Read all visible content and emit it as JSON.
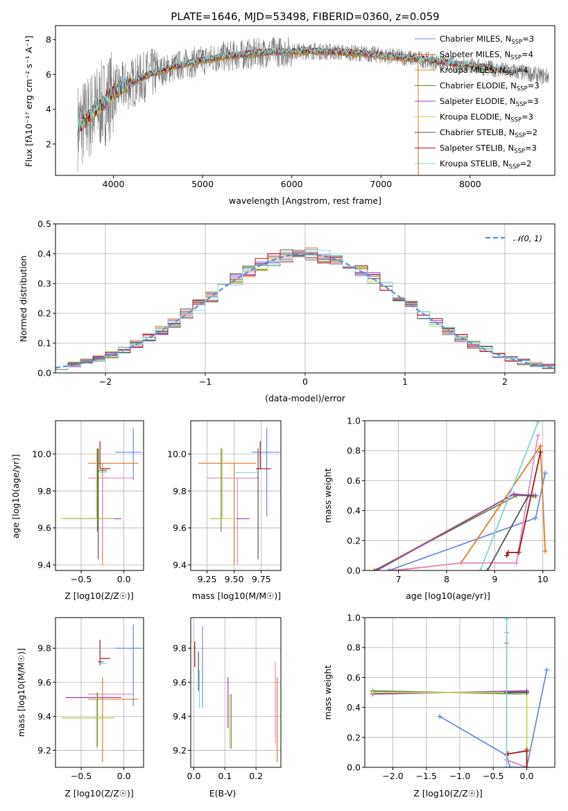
{
  "colors": {
    "Chabrier MILES": "#6b8bd6",
    "Salpeter MILES": "#e07a2a",
    "Kroupa MILES": "#d98a2b",
    "Chabrier ELODIE": "#5c8a35",
    "Salpeter ELODIE": "#9a3bbf",
    "Kroupa ELODIE": "#c8d45a",
    "Chabrier STELIB": "#555555",
    "Salpeter STELIB": "#a31414",
    "Kroupa STELIB": "#80d4d8",
    "pink": "#e58ac0",
    "normal": "#5a8fd6",
    "data_spectrum": "#7a7a7a"
  },
  "chart_data": [
    {
      "id": "spectrum",
      "type": "line",
      "title": "PLATE=1646, MJD=53498, FIBERID=0360, z=0.059",
      "xlabel": "wavelength [Angstrom, rest frame]",
      "ylabel": "Flux [fλ10⁻¹⁷ erg cm⁻² s⁻¹ A⁻¹]",
      "xlim": [
        3350,
        8950
      ],
      "ylim": [
        0.2,
        8.8
      ],
      "xticks": [
        4000,
        5000,
        6000,
        7000,
        8000
      ],
      "yticks": [
        2,
        4,
        6,
        8
      ],
      "grid": false,
      "legend": "top-right",
      "legend_entries": [
        {
          "name": "Chabrier MILES",
          "nssp": "3"
        },
        {
          "name": "Salpeter MILES",
          "nssp": "4"
        },
        {
          "name": "Kroupa MILES",
          "nssp": "4"
        },
        {
          "name": "Chabrier ELODIE",
          "nssp": "3"
        },
        {
          "name": "Salpeter ELODIE",
          "nssp": "3"
        },
        {
          "name": "Kroupa ELODIE",
          "nssp": "3"
        },
        {
          "name": "Chabrier STELIB",
          "nssp": "2"
        },
        {
          "name": "Salpeter STELIB",
          "nssp": "3"
        },
        {
          "name": "Kroupa STELIB",
          "nssp": "2"
        }
      ],
      "model_curve": {
        "x": [
          3600,
          3700,
          3800,
          3900,
          4000,
          4200,
          4400,
          4600,
          4800,
          5000,
          5200,
          5400,
          5600,
          5800,
          6000,
          6200,
          6400,
          6600,
          6800,
          7000,
          7200,
          7400,
          7600,
          7800,
          8000,
          8200,
          8400,
          8600,
          8800
        ],
        "y": [
          3.0,
          3.4,
          4.0,
          4.4,
          5.0,
          5.5,
          6.0,
          6.3,
          6.6,
          6.8,
          7.0,
          7.1,
          7.2,
          7.3,
          7.3,
          7.35,
          7.3,
          7.25,
          7.2,
          7.1,
          7.0,
          6.9,
          6.75,
          6.6,
          6.5,
          6.35,
          6.2,
          6.1,
          5.9
        ]
      }
    },
    {
      "id": "residuals",
      "type": "step",
      "xlabel": "(data-model)/error",
      "ylabel": "Normed distribution",
      "xlim": [
        -2.5,
        2.5
      ],
      "ylim": [
        0,
        0.5
      ],
      "xticks": [
        -2,
        -1,
        0,
        1,
        2
      ],
      "xtick_labels": [
        "−2",
        "−1",
        "0",
        "1",
        "2"
      ],
      "yticks": [
        0.0,
        0.1,
        0.2,
        0.3,
        0.4,
        0.5
      ],
      "ytick_labels": [
        "0.0",
        "0.1",
        "0.2",
        "0.3",
        "0.4",
        "0.5"
      ],
      "grid": true,
      "legend": "top-right",
      "normal_label": "𝒩(0, 1)"
    },
    {
      "id": "age_vs_Z",
      "type": "errorbar",
      "xlabel": "Z [log10(Z/Z☉)]",
      "ylabel": "age  [log10(age/yr)]",
      "xlim": [
        -0.8,
        0.23
      ],
      "ylim": [
        9.37,
        10.18
      ],
      "xticks": [
        -0.5,
        0.0
      ],
      "xtick_labels": [
        "−0.5",
        "0.0"
      ],
      "yticks": [
        9.4,
        9.6,
        9.8,
        10.0
      ],
      "ytick_labels": [
        "9.4",
        "9.6",
        "9.8",
        "10.0"
      ],
      "grid": true,
      "points": [
        {
          "c": "Chabrier MILES",
          "x": 0.11,
          "y": 10.01,
          "xerr": [
            0.21,
            0.1
          ],
          "yerr": [
            0.15,
            0.13
          ]
        },
        {
          "c": "Salpeter MILES",
          "x": -0.25,
          "y": 9.95,
          "xerr": [
            0.17,
            0.42
          ],
          "yerr": [
            0.55,
            0.0
          ]
        },
        {
          "c": "pink",
          "x": -0.25,
          "y": 9.87,
          "xerr": [
            0.17,
            0.37
          ],
          "yerr": [
            0.42,
            0.0
          ]
        },
        {
          "c": "Chabrier ELODIE",
          "x": -0.31,
          "y": 9.65,
          "xerr": [
            0.4,
            0.2
          ],
          "yerr": [
            0.07,
            0.38
          ]
        },
        {
          "c": "Salpeter ELODIE",
          "x": -0.3,
          "y": 9.65,
          "xerr": [
            0.38,
            0.27
          ],
          "yerr": [
            0.0,
            0.0
          ]
        },
        {
          "c": "Kroupa ELODIE",
          "x": -0.32,
          "y": 9.65,
          "xerr": [
            0.42,
            0.21
          ],
          "yerr": [
            0.0,
            0.38
          ]
        },
        {
          "c": "Chabrier STELIB",
          "x": -0.3,
          "y": 9.91,
          "xerr": [
            0.0,
            0.1
          ],
          "yerr": [
            0.48,
            0.12
          ]
        },
        {
          "c": "Salpeter STELIB",
          "x": -0.28,
          "y": 9.92,
          "xerr": [
            0.0,
            0.12
          ],
          "yerr": [
            0.0,
            0.15
          ]
        },
        {
          "c": "Kroupa STELIB",
          "x": -0.28,
          "y": 9.9,
          "xerr": [
            0.0,
            0.08
          ],
          "yerr": [
            0.0,
            0.0
          ]
        }
      ]
    },
    {
      "id": "age_vs_mass",
      "type": "errorbar",
      "xlabel": "mass [log10(M/M☉)]",
      "xlim": [
        9.1,
        9.93
      ],
      "ylim": [
        9.37,
        10.18
      ],
      "xticks": [
        9.25,
        9.5,
        9.75
      ],
      "xtick_labels": [
        "9.25",
        "9.50",
        "9.75"
      ],
      "yticks": [
        9.4,
        9.6,
        9.8,
        10.0
      ],
      "ytick_labels": [
        "9.4",
        "9.6",
        "9.8",
        "10.0"
      ],
      "grid": true,
      "points": [
        {
          "c": "Chabrier MILES",
          "x": 9.8,
          "y": 10.01,
          "xerr": [
            0.14,
            0.12
          ],
          "yerr": [
            0.35,
            0.13
          ]
        },
        {
          "c": "Salpeter MILES",
          "x": 9.5,
          "y": 9.95,
          "xerr": [
            0.33,
            0.2
          ],
          "yerr": [
            0.55,
            0.0
          ]
        },
        {
          "c": "pink",
          "x": 9.53,
          "y": 9.87,
          "xerr": [
            0.28,
            0.2
          ],
          "yerr": [
            0.47,
            0.0
          ]
        },
        {
          "c": "Chabrier ELODIE",
          "x": 9.38,
          "y": 9.65,
          "xerr": [
            0.1,
            0.0
          ],
          "yerr": [
            0.07,
            0.38
          ]
        },
        {
          "c": "Salpeter ELODIE",
          "x": 9.52,
          "y": 9.65,
          "xerr": [
            0.0,
            0.12
          ],
          "yerr": [
            0.0,
            0.0
          ]
        },
        {
          "c": "Kroupa ELODIE",
          "x": 9.39,
          "y": 9.65,
          "xerr": [
            0.11,
            0.12
          ],
          "yerr": [
            0.0,
            0.38
          ]
        },
        {
          "c": "Chabrier STELIB",
          "x": 9.72,
          "y": 9.91,
          "xerr": [
            0.0,
            0.0
          ],
          "yerr": [
            0.48,
            0.12
          ]
        },
        {
          "c": "Salpeter STELIB",
          "x": 9.74,
          "y": 9.92,
          "xerr": [
            0.04,
            0.1
          ],
          "yerr": [
            0.0,
            0.15
          ]
        },
        {
          "c": "Kroupa STELIB",
          "x": 9.71,
          "y": 9.9,
          "xerr": [
            0.2,
            0.0
          ],
          "yerr": [
            0.0,
            0.0
          ]
        }
      ]
    },
    {
      "id": "massweight_vs_age",
      "type": "line",
      "xlabel": "age  [log10(age/yr)]",
      "ylabel": "mass weight",
      "xlim": [
        6.3,
        10.25
      ],
      "ylim": [
        0,
        1
      ],
      "xticks": [
        7,
        8,
        9,
        10
      ],
      "xtick_labels": [
        "7",
        "8",
        "9",
        "10"
      ],
      "yticks": [
        0.0,
        0.2,
        0.4,
        0.6,
        0.8,
        1.0
      ],
      "ytick_labels": [
        "0.0",
        "0.2",
        "0.4",
        "0.6",
        "0.8",
        "1.0"
      ],
      "grid": true,
      "series": [
        {
          "c": "Chabrier MILES",
          "x": [
            6.8,
            9.85,
            10.05
          ],
          "y": [
            0.0,
            0.35,
            0.65
          ]
        },
        {
          "c": "Kroupa ELODIE",
          "x": [
            6.5,
            9.4,
            9.85
          ],
          "y": [
            0.0,
            0.51,
            0.49
          ]
        },
        {
          "c": "Chabrier ELODIE",
          "x": [
            6.5,
            9.45,
            9.8
          ],
          "y": [
            0.0,
            0.5,
            0.5
          ]
        },
        {
          "c": "Salpeter ELODIE",
          "x": [
            6.55,
            9.4,
            9.85
          ],
          "y": [
            0.0,
            0.51,
            0.5
          ]
        },
        {
          "c": "Salpeter MILES",
          "x": [
            6.9,
            8.3,
            9.95,
            10.05
          ],
          "y": [
            0.0,
            0.05,
            0.83,
            0.13
          ]
        },
        {
          "c": "pink",
          "x": [
            6.95,
            8.3,
            9.45,
            9.9
          ],
          "y": [
            0.0,
            0.05,
            0.05,
            0.9
          ]
        },
        {
          "c": "Chabrier STELIB",
          "x": [
            8.85,
            9.7
          ],
          "y": [
            0.0,
            0.5
          ]
        },
        {
          "c": "Salpeter STELIB",
          "x": [
            9.25,
            9.28,
            9.5,
            9.95
          ],
          "y": [
            0.1,
            0.12,
            0.12,
            0.79
          ]
        },
        {
          "c": "Kroupa STELIB",
          "x": [
            8.7,
            9.9
          ],
          "y": [
            0.0,
            0.99
          ]
        }
      ]
    },
    {
      "id": "mass_vs_Z",
      "type": "errorbar",
      "xlabel": "Z [log10(Z/Z☉)]",
      "ylabel": "mass [log10(M/M☉)]",
      "xlim": [
        -0.8,
        0.23
      ],
      "ylim": [
        9.1,
        9.98
      ],
      "xticks": [
        -0.5,
        0.0
      ],
      "xtick_labels": [
        "−0.5",
        "0.0"
      ],
      "yticks": [
        9.2,
        9.4,
        9.6,
        9.8
      ],
      "ytick_labels": [
        "9.2",
        "9.4",
        "9.6",
        "9.8"
      ],
      "grid": true,
      "points": [
        {
          "c": "Chabrier MILES",
          "x": 0.11,
          "y": 9.8,
          "xerr": [
            0.21,
            0.1
          ],
          "yerr": [
            0.34,
            0.14
          ]
        },
        {
          "c": "Salpeter MILES",
          "x": -0.25,
          "y": 9.5,
          "xerr": [
            0.17,
            0.42
          ],
          "yerr": [
            0.37,
            0.13
          ]
        },
        {
          "c": "pink",
          "x": -0.25,
          "y": 9.53,
          "xerr": [
            0.17,
            0.37
          ],
          "yerr": [
            0.0,
            0.0
          ]
        },
        {
          "c": "Chabrier ELODIE",
          "x": -0.31,
          "y": 9.39,
          "xerr": [
            0.4,
            0.2
          ],
          "yerr": [
            0.17,
            0.15
          ]
        },
        {
          "c": "Salpeter ELODIE",
          "x": -0.3,
          "y": 9.51,
          "xerr": [
            0.38,
            0.27
          ],
          "yerr": [
            0.0,
            0.0
          ]
        },
        {
          "c": "Kroupa ELODIE",
          "x": -0.32,
          "y": 9.39,
          "xerr": [
            0.42,
            0.21
          ],
          "yerr": [
            0.18,
            0.15
          ]
        },
        {
          "c": "Chabrier STELIB",
          "x": -0.3,
          "y": 9.72,
          "xerr": [
            0.0,
            0.06
          ],
          "yerr": [
            0.0,
            0.0
          ]
        },
        {
          "c": "Salpeter STELIB",
          "x": -0.28,
          "y": 9.74,
          "xerr": [
            0.0,
            0.12
          ],
          "yerr": [
            0.04,
            0.11
          ]
        },
        {
          "c": "Kroupa STELIB",
          "x": -0.28,
          "y": 9.71,
          "xerr": [
            0.0,
            0.08
          ],
          "yerr": [
            0.0,
            0.0
          ]
        }
      ]
    },
    {
      "id": "mass_vs_EBV",
      "type": "errorbar",
      "xlabel": "E(B-V)",
      "xlim": [
        -0.01,
        0.28
      ],
      "ylim": [
        9.1,
        9.98
      ],
      "xticks": [
        0.0,
        0.1,
        0.2
      ],
      "xtick_labels": [
        "0.0",
        "0.1",
        "0.2"
      ],
      "yticks": [
        9.2,
        9.4,
        9.6,
        9.8
      ],
      "ytick_labels": [
        "9.2",
        "9.4",
        "9.6",
        "9.8"
      ],
      "grid": true,
      "points": [
        {
          "c": "Salpeter STELIB",
          "x": 0.003,
          "y": 9.77,
          "xerr": [
            0,
            0
          ],
          "yerr": [
            0.08,
            0.07
          ]
        },
        {
          "c": "Chabrier STELIB",
          "x": 0.015,
          "y": 9.65,
          "xerr": [
            0,
            0
          ],
          "yerr": [
            0.1,
            0.13
          ]
        },
        {
          "c": "Kroupa STELIB",
          "x": 0.018,
          "y": 9.55,
          "xerr": [
            0,
            0
          ],
          "yerr": [
            0.1,
            0.12
          ]
        },
        {
          "c": "Chabrier MILES",
          "x": 0.028,
          "y": 9.72,
          "xerr": [
            0,
            0
          ],
          "yerr": [
            0.27,
            0.21
          ]
        },
        {
          "c": "Salpeter ELODIE",
          "x": 0.11,
          "y": 9.48,
          "xerr": [
            0,
            0
          ],
          "yerr": [
            0.15,
            0.15
          ]
        },
        {
          "c": "Kroupa ELODIE",
          "x": 0.115,
          "y": 9.36,
          "xerr": [
            0,
            0
          ],
          "yerr": [
            0.15,
            0.17
          ]
        },
        {
          "c": "Chabrier ELODIE",
          "x": 0.12,
          "y": 9.37,
          "xerr": [
            0,
            0
          ],
          "yerr": [
            0.16,
            0.16
          ]
        },
        {
          "c": "pink",
          "x": 0.262,
          "y": 9.48,
          "xerr": [
            0,
            0
          ],
          "yerr": [
            0.24,
            0.24
          ]
        },
        {
          "c": "Salpeter MILES",
          "x": 0.268,
          "y": 9.38,
          "xerr": [
            0,
            0
          ],
          "yerr": [
            0.25,
            0.25
          ]
        }
      ]
    },
    {
      "id": "massweight_vs_Z",
      "type": "line",
      "xlabel": "Z [log10(Z/Z☉)]",
      "ylabel": "mass weight",
      "xlim": [
        -2.42,
        0.42
      ],
      "ylim": [
        0,
        1
      ],
      "xticks": [
        -2.0,
        -1.5,
        -1.0,
        -0.5,
        0.0
      ],
      "xtick_labels": [
        "−2.0",
        "−1.5",
        "−1.0",
        "−0.5",
        "0.0"
      ],
      "yticks": [
        0.0,
        0.2,
        0.4,
        0.6,
        0.8,
        1.0
      ],
      "ytick_labels": [
        "0.0",
        "0.2",
        "0.4",
        "0.6",
        "0.8",
        "1.0"
      ],
      "grid": true,
      "series": [
        {
          "c": "Chabrier MILES",
          "x": [
            -1.3,
            -0.3,
            -0.25,
            0.0,
            0.3
          ],
          "y": [
            0.34,
            0.08,
            0.0,
            0.0,
            0.65
          ]
        },
        {
          "c": "Chabrier ELODIE",
          "x": [
            -2.3,
            0.0
          ],
          "y": [
            0.51,
            0.49
          ]
        },
        {
          "c": "Salpeter ELODIE",
          "x": [
            -2.3,
            0.0
          ],
          "y": [
            0.49,
            0.51
          ]
        },
        {
          "c": "Kroupa ELODIE",
          "x": [
            -2.3,
            -0.3,
            0.0,
            0.0
          ],
          "y": [
            0.5,
            0.5,
            0.49,
            0.0
          ]
        },
        {
          "c": "Salpeter MILES",
          "x": [
            -0.3,
            -0.3,
            0.0,
            0.0
          ],
          "y": [
            0.83,
            0.05,
            0.0,
            0.12
          ]
        },
        {
          "c": "pink",
          "x": [
            -0.3,
            -0.3,
            0.0
          ],
          "y": [
            0.9,
            0.05,
            0.0
          ]
        },
        {
          "c": "Chabrier STELIB",
          "x": [
            -0.3,
            0.0
          ],
          "y": [
            0.5,
            0.5
          ]
        },
        {
          "c": "Salpeter STELIB",
          "x": [
            -0.28,
            0.0,
            0.0
          ],
          "y": [
            0.09,
            0.11,
            0.0
          ]
        },
        {
          "c": "Kroupa STELIB",
          "x": [
            -0.3,
            -0.3
          ],
          "y": [
            0.0,
            0.99
          ]
        }
      ]
    }
  ]
}
